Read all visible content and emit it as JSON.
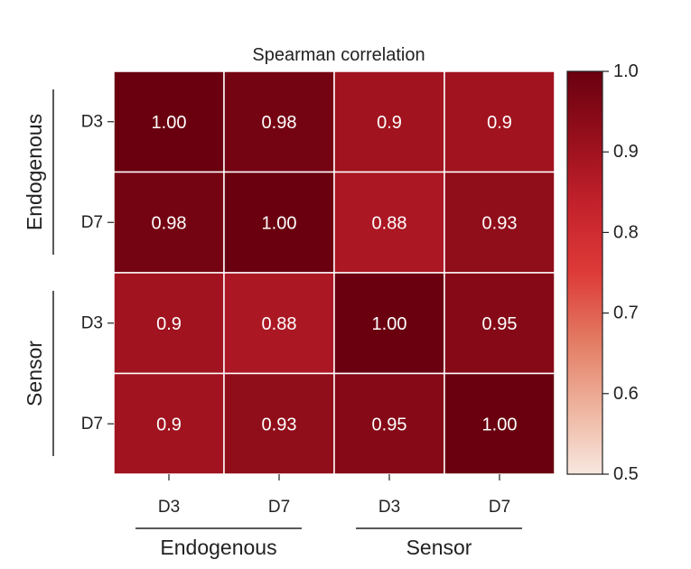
{
  "chart_data": {
    "type": "heatmap",
    "title": "Spearman correlation",
    "rows": [
      "D3",
      "D7",
      "D3",
      "D7"
    ],
    "columns": [
      "D3",
      "D7",
      "D3",
      "D7"
    ],
    "row_groups": [
      {
        "label": "Endogenous",
        "span": [
          0,
          1
        ]
      },
      {
        "label": "Sensor",
        "span": [
          2,
          3
        ]
      }
    ],
    "column_groups": [
      {
        "label": "Endogenous",
        "span": [
          0,
          1
        ]
      },
      {
        "label": "Sensor",
        "span": [
          2,
          3
        ]
      }
    ],
    "values": [
      [
        1.0,
        0.98,
        0.9,
        0.9
      ],
      [
        0.98,
        1.0,
        0.88,
        0.93
      ],
      [
        0.9,
        0.88,
        1.0,
        0.95
      ],
      [
        0.9,
        0.93,
        0.95,
        1.0
      ]
    ],
    "cell_labels": [
      [
        "1.00",
        "0.98",
        "0.9",
        "0.9"
      ],
      [
        "0.98",
        "1.00",
        "0.88",
        "0.93"
      ],
      [
        "0.9",
        "0.88",
        "1.00",
        "0.95"
      ],
      [
        "0.9",
        "0.93",
        "0.95",
        "1.00"
      ]
    ],
    "colorbar": {
      "range": [
        0.5,
        1.0
      ],
      "ticks": [
        1.0,
        0.9,
        0.8,
        0.7,
        0.6,
        0.5
      ],
      "tick_labels": [
        "1.0",
        "0.9",
        "0.8",
        "0.7",
        "0.6",
        "0.5"
      ],
      "colormap": "Reds",
      "colormap_stops": [
        "#f7e7df",
        "#eeb39d",
        "#e37a62",
        "#dd3b38",
        "#c4222c",
        "#970f1c",
        "#6a000f"
      ]
    }
  }
}
